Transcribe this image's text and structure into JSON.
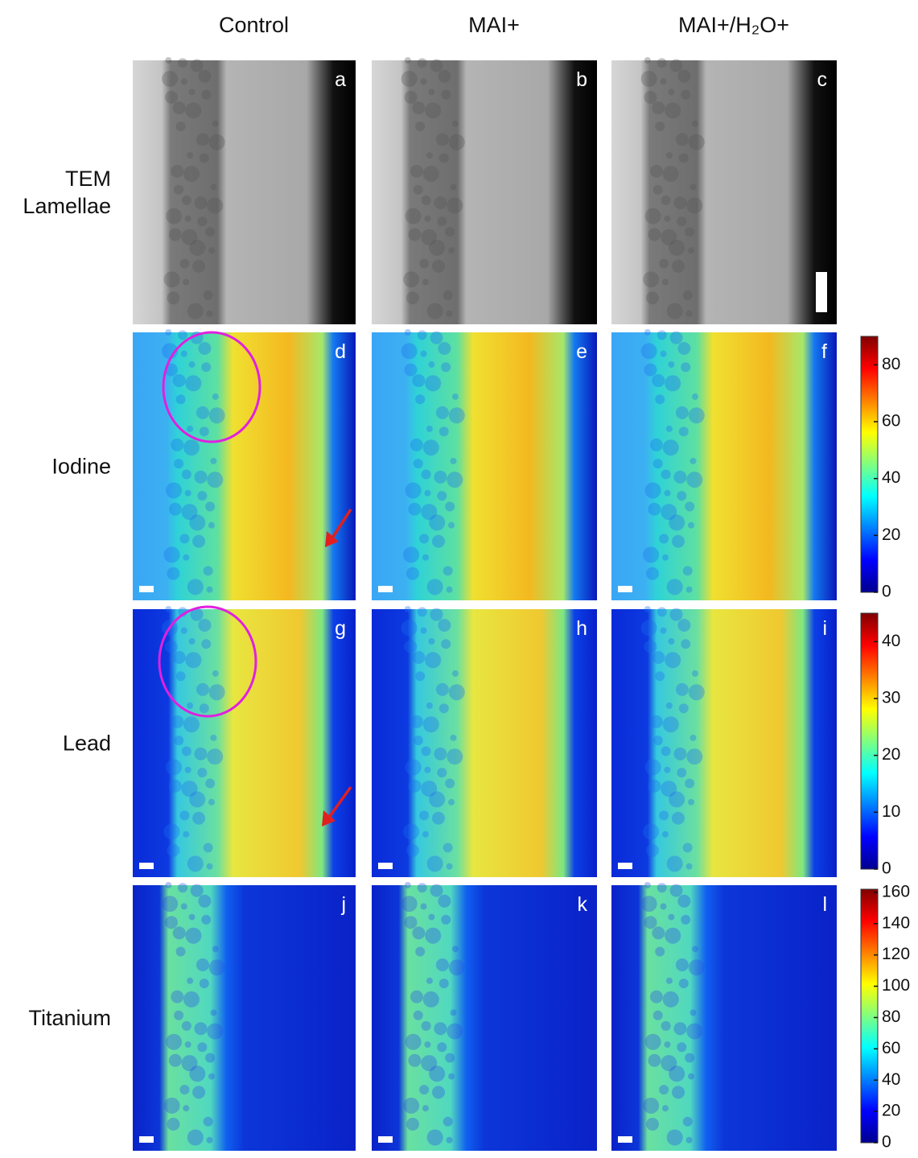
{
  "columns": [
    "Control",
    "MAI+",
    "MAI+/H₂O+"
  ],
  "rows": [
    {
      "label": [
        "TEM",
        "Lamellae"
      ],
      "panels": [
        "a",
        "b",
        "c"
      ]
    },
    {
      "label": [
        "Iodine"
      ],
      "panels": [
        "d",
        "e",
        "f"
      ],
      "colorbar": {
        "lim": [
          0,
          90
        ],
        "ticks": [
          0,
          20,
          40,
          60,
          80
        ]
      }
    },
    {
      "label": [
        "Lead"
      ],
      "panels": [
        "g",
        "h",
        "i"
      ],
      "colorbar": {
        "lim": [
          0,
          45
        ],
        "ticks": [
          0,
          10,
          20,
          30,
          40
        ]
      }
    },
    {
      "label": [
        "Titanium"
      ],
      "panels": [
        "j",
        "k",
        "l"
      ],
      "colorbar": {
        "lim": [
          0,
          162
        ],
        "ticks": [
          0,
          20,
          40,
          60,
          80,
          100,
          120,
          140,
          160
        ]
      }
    }
  ]
}
